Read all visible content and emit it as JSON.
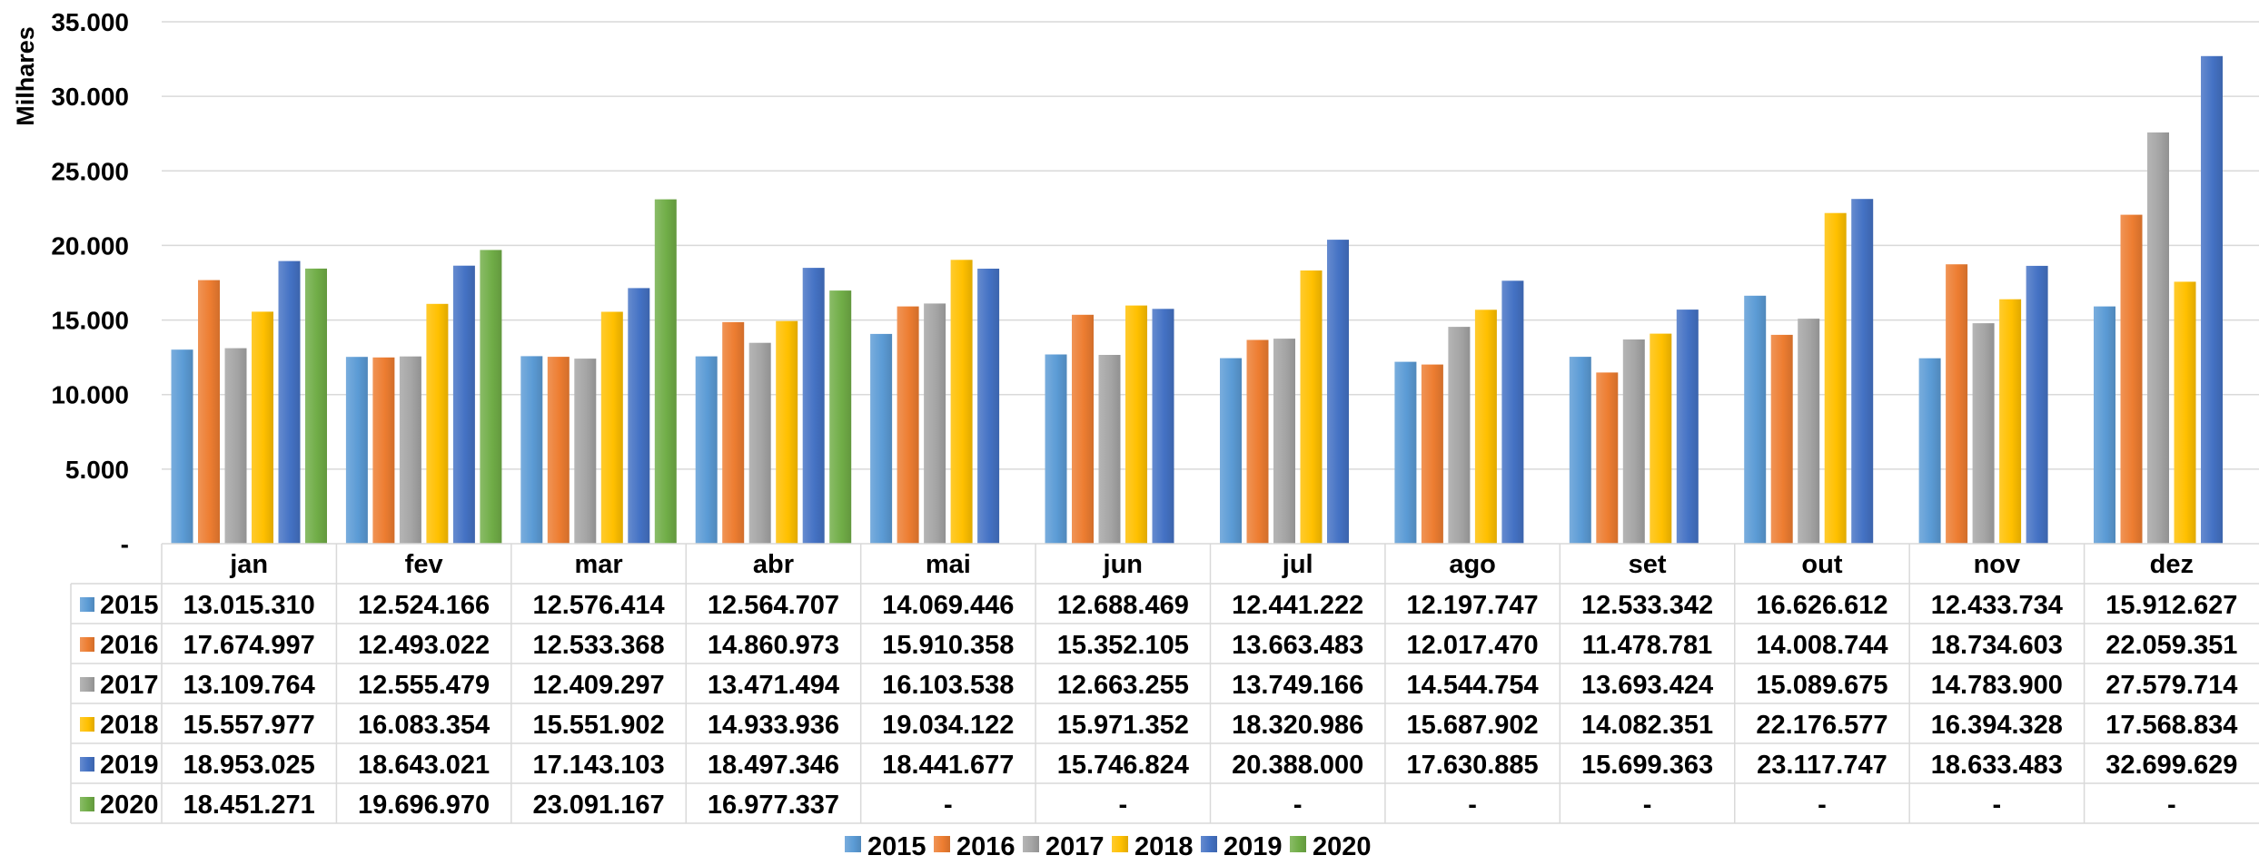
{
  "chart_data": {
    "type": "bar",
    "ylabel": "Milhares",
    "ylim": [
      0,
      35000
    ],
    "yticks": [
      0,
      5000,
      10000,
      15000,
      20000,
      25000,
      30000,
      35000
    ],
    "ytick_labels": [
      "-",
      "5.000",
      "10.000",
      "15.000",
      "20.000",
      "25.000",
      "30.000",
      "35.000"
    ],
    "grid": true,
    "legend_position": "bottom",
    "categories": [
      "jan",
      "fev",
      "mar",
      "abr",
      "mai",
      "jun",
      "jul",
      "ago",
      "set",
      "out",
      "nov",
      "dez"
    ],
    "series": [
      {
        "name": "2015",
        "color": "#5B9BD5",
        "values": [
          13015.31,
          12524.166,
          12576.414,
          12564.707,
          14069.446,
          12688.469,
          12441.222,
          12197.747,
          12533.342,
          16626.612,
          12433.734,
          15912.627
        ],
        "labels": [
          "13.015.310",
          "12.524.166",
          "12.576.414",
          "12.564.707",
          "14.069.446",
          "12.688.469",
          "12.441.222",
          "12.197.747",
          "12.533.342",
          "16.626.612",
          "12.433.734",
          "15.912.627"
        ]
      },
      {
        "name": "2016",
        "color": "#ED7D31",
        "values": [
          17674.997,
          12493.022,
          12533.368,
          14860.973,
          15910.358,
          15352.105,
          13663.483,
          12017.47,
          11478.781,
          14008.744,
          18734.603,
          22059.351
        ],
        "labels": [
          "17.674.997",
          "12.493.022",
          "12.533.368",
          "14.860.973",
          "15.910.358",
          "15.352.105",
          "13.663.483",
          "12.017.470",
          "11.478.781",
          "14.008.744",
          "18.734.603",
          "22.059.351"
        ]
      },
      {
        "name": "2017",
        "color": "#A5A5A5",
        "values": [
          13109.764,
          12555.479,
          12409.297,
          13471.494,
          16103.538,
          12663.255,
          13749.166,
          14544.754,
          13693.424,
          15089.675,
          14783.9,
          27579.714
        ],
        "labels": [
          "13.109.764",
          "12.555.479",
          "12.409.297",
          "13.471.494",
          "16.103.538",
          "12.663.255",
          "13.749.166",
          "14.544.754",
          "13.693.424",
          "15.089.675",
          "14.783.900",
          "27.579.714"
        ]
      },
      {
        "name": "2018",
        "color": "#FFC000",
        "values": [
          15557.977,
          16083.354,
          15551.902,
          14933.936,
          19034.122,
          15971.352,
          18320.986,
          15687.902,
          14082.351,
          22176.577,
          16394.328,
          17568.834
        ],
        "labels": [
          "15.557.977",
          "16.083.354",
          "15.551.902",
          "14.933.936",
          "19.034.122",
          "15.971.352",
          "18.320.986",
          "15.687.902",
          "14.082.351",
          "22.176.577",
          "16.394.328",
          "17.568.834"
        ]
      },
      {
        "name": "2019",
        "color": "#4472C4",
        "values": [
          18953.025,
          18643.021,
          17143.103,
          18497.346,
          18441.677,
          15746.824,
          20388.0,
          17630.885,
          15699.363,
          23117.747,
          18633.483,
          32699.629
        ],
        "labels": [
          "18.953.025",
          "18.643.021",
          "17.143.103",
          "18.497.346",
          "18.441.677",
          "15.746.824",
          "20.388.000",
          "17.630.885",
          "15.699.363",
          "23.117.747",
          "18.633.483",
          "32.699.629"
        ]
      },
      {
        "name": "2020",
        "color": "#70AD47",
        "values": [
          18451.271,
          19696.97,
          23091.167,
          16977.337,
          null,
          null,
          null,
          null,
          null,
          null,
          null,
          null
        ],
        "labels": [
          "18.451.271",
          "19.696.970",
          "23.091.167",
          "16.977.337",
          "-",
          "-",
          "-",
          "-",
          "-",
          "-",
          "-",
          "-"
        ]
      }
    ]
  }
}
